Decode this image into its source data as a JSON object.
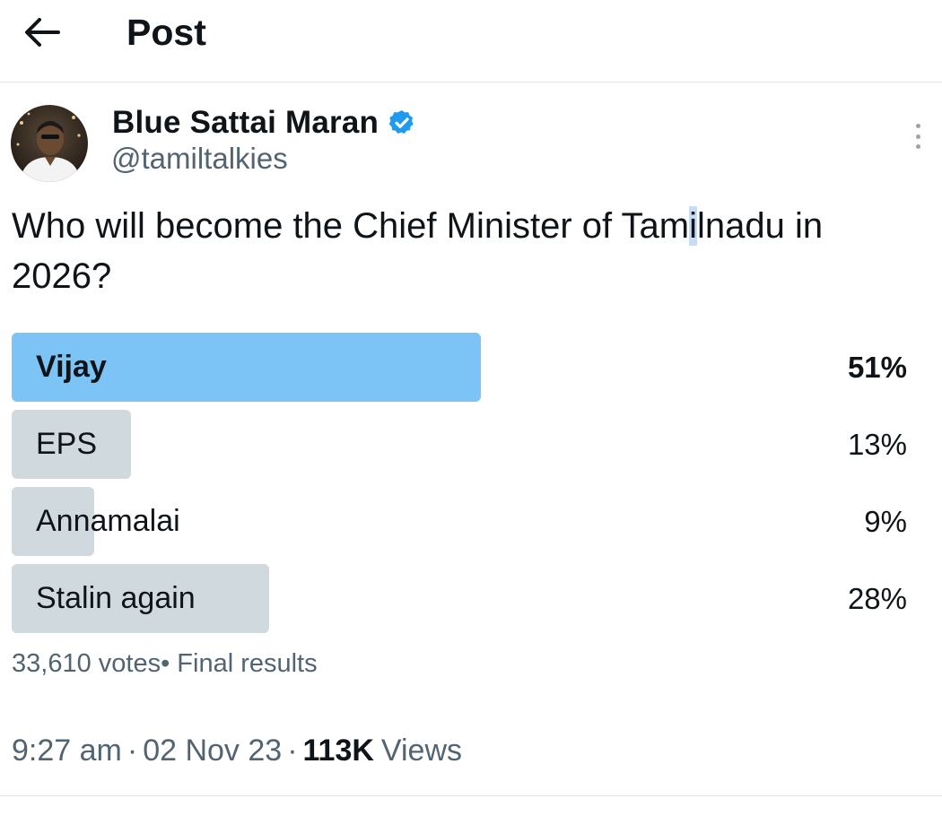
{
  "header": {
    "back_icon": "arrow-left-icon",
    "title": "Post"
  },
  "author": {
    "name": "Blue Sattai Maran",
    "handle": "@tamiltalkies",
    "verified_icon": "verified-badge-icon",
    "verified_color": "#1d9bf0"
  },
  "post": {
    "text_before_cursor": "Who will become the Chief Minister of Tam",
    "text_cursor_char": "i",
    "text_after_cursor": "lnadu in 2026?"
  },
  "poll": {
    "options": [
      {
        "label": "Vijay",
        "percent_label": "51%",
        "percent": 51,
        "winner": true
      },
      {
        "label": "EPS",
        "percent_label": "13%",
        "percent": 13,
        "winner": false
      },
      {
        "label": "Annamalai",
        "percent_label": "9%",
        "percent": 9,
        "winner": false
      },
      {
        "label": "Stalin again",
        "percent_label": "28%",
        "percent": 28,
        "winner": false
      }
    ],
    "votes": "33,610 votes",
    "status": "• Final results",
    "winner_color": "#7cc4f6",
    "bar_color": "#cfd9de"
  },
  "meta": {
    "time": "9:27 am",
    "date": "02 Nov 23",
    "views_count": "113K",
    "views_label": "Views",
    "separator": "·"
  }
}
